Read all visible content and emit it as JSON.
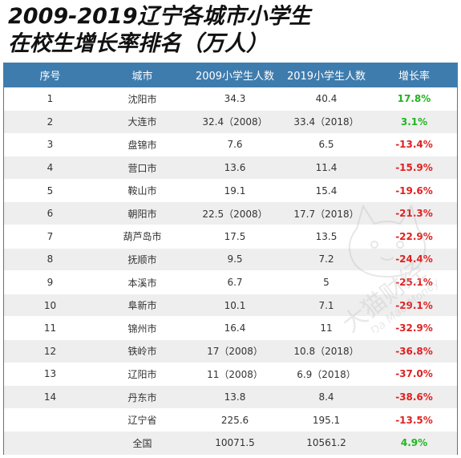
{
  "title": {
    "line1": "2009-2019辽宁各城市小学生",
    "line2": "在校生增长率排名（万人）"
  },
  "table": {
    "headers": [
      "序号",
      "城市",
      "2009小学生人数",
      "2019小学生人数",
      "增长率"
    ],
    "rows": [
      {
        "rank": "1",
        "city": "沈阳市",
        "y2009": "34.3",
        "y2019": "40.4",
        "rate": "17.8%",
        "trend": "pos"
      },
      {
        "rank": "2",
        "city": "大连市",
        "y2009": "32.4（2008）",
        "y2019": "33.4（2018）",
        "rate": "3.1%",
        "trend": "pos"
      },
      {
        "rank": "3",
        "city": "盘锦市",
        "y2009": "7.6",
        "y2019": "6.5",
        "rate": "-13.4%",
        "trend": "neg"
      },
      {
        "rank": "4",
        "city": "营口市",
        "y2009": "13.6",
        "y2019": "11.4",
        "rate": "-15.9%",
        "trend": "neg"
      },
      {
        "rank": "5",
        "city": "鞍山市",
        "y2009": "19.1",
        "y2019": "15.4",
        "rate": "-19.6%",
        "trend": "neg"
      },
      {
        "rank": "6",
        "city": "朝阳市",
        "y2009": "22.5（2008）",
        "y2019": "17.7（2018）",
        "rate": "-21.3%",
        "trend": "neg"
      },
      {
        "rank": "7",
        "city": "葫芦岛市",
        "y2009": "17.5",
        "y2019": "13.5",
        "rate": "-22.9%",
        "trend": "neg"
      },
      {
        "rank": "8",
        "city": "抚顺市",
        "y2009": "9.5",
        "y2019": "7.2",
        "rate": "-24.4%",
        "trend": "neg"
      },
      {
        "rank": "9",
        "city": "本溪市",
        "y2009": "6.7",
        "y2019": "5",
        "rate": "-25.1%",
        "trend": "neg"
      },
      {
        "rank": "10",
        "city": "阜新市",
        "y2009": "10.1",
        "y2019": "7.1",
        "rate": "-29.1%",
        "trend": "neg"
      },
      {
        "rank": "11",
        "city": "锦州市",
        "y2009": "16.4",
        "y2019": "11",
        "rate": "-32.9%",
        "trend": "neg"
      },
      {
        "rank": "12",
        "city": "铁岭市",
        "y2009": "17（2008）",
        "y2019": "10.8（2018）",
        "rate": "-36.8%",
        "trend": "neg"
      },
      {
        "rank": "13",
        "city": "辽阳市",
        "y2009": "11（2008）",
        "y2019": "6.9（2018）",
        "rate": "-37.0%",
        "trend": "neg"
      },
      {
        "rank": "14",
        "city": "丹东市",
        "y2009": "13.8",
        "y2019": "8.4",
        "rate": "-38.6%",
        "trend": "neg"
      },
      {
        "rank": "",
        "city": "辽宁省",
        "y2009": "225.6",
        "y2019": "195.1",
        "rate": "-13.5%",
        "trend": "neg"
      },
      {
        "rank": "",
        "city": "全国",
        "y2009": "10071.5",
        "y2019": "10561.2",
        "rate": "4.9%",
        "trend": "pos"
      }
    ]
  },
  "watermark": {
    "text_cn": "大猫财经",
    "text_en": "Da Mao Money"
  },
  "colors": {
    "header_bg": "#3f7cae",
    "positive": "#21b421",
    "negative": "#e02020"
  }
}
